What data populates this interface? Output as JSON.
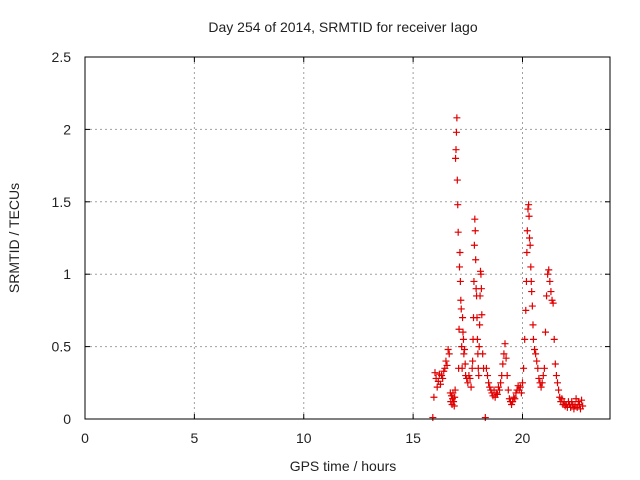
{
  "chart_data": {
    "type": "scatter",
    "title": "Day 254 of 2014, SRMTID for receiver Iago",
    "xlabel": "GPS time / hours",
    "ylabel": "SRMTID / TECUs",
    "xlim": [
      0,
      24
    ],
    "ylim": [
      0,
      2.5
    ],
    "x_ticks": [
      0,
      5,
      10,
      15,
      20
    ],
    "y_ticks": [
      0,
      0.5,
      1,
      1.5,
      2,
      2.5
    ],
    "x_tick_labels": [
      "0",
      "5",
      "10",
      "15",
      "20"
    ],
    "y_tick_labels": [
      "0",
      "0.5",
      "1",
      "1.5",
      "2",
      "2.5"
    ],
    "grid": true,
    "marker": "+",
    "color": "#e00000",
    "series": [
      {
        "name": "SRMTID",
        "points": [
          [
            15.9,
            0.01
          ],
          [
            15.95,
            0.15
          ],
          [
            16.0,
            0.32
          ],
          [
            16.05,
            0.28
          ],
          [
            16.1,
            0.22
          ],
          [
            16.15,
            0.26
          ],
          [
            16.2,
            0.31
          ],
          [
            16.25,
            0.24
          ],
          [
            16.3,
            0.3
          ],
          [
            16.35,
            0.28
          ],
          [
            16.4,
            0.33
          ],
          [
            16.45,
            0.35
          ],
          [
            16.5,
            0.4
          ],
          [
            16.55,
            0.37
          ],
          [
            16.6,
            0.48
          ],
          [
            16.65,
            0.45
          ],
          [
            16.7,
            0.18
          ],
          [
            16.72,
            0.12
          ],
          [
            16.75,
            0.16
          ],
          [
            16.78,
            0.1
          ],
          [
            16.8,
            0.14
          ],
          [
            16.82,
            0.18
          ],
          [
            16.85,
            0.12
          ],
          [
            16.88,
            0.09
          ],
          [
            16.9,
            0.15
          ],
          [
            16.92,
            0.2
          ],
          [
            16.94,
            1.8
          ],
          [
            16.96,
            1.86
          ],
          [
            16.98,
            1.98
          ],
          [
            17.0,
            2.08
          ],
          [
            17.02,
            1.65
          ],
          [
            17.04,
            1.48
          ],
          [
            17.06,
            1.29
          ],
          [
            17.08,
            0.35
          ],
          [
            17.1,
            0.62
          ],
          [
            17.12,
            1.05
          ],
          [
            17.14,
            1.15
          ],
          [
            17.16,
            0.95
          ],
          [
            17.18,
            0.82
          ],
          [
            17.2,
            0.76
          ],
          [
            17.22,
            0.5
          ],
          [
            17.24,
            0.35
          ],
          [
            17.26,
            0.7
          ],
          [
            17.28,
            0.6
          ],
          [
            17.3,
            0.55
          ],
          [
            17.32,
            0.45
          ],
          [
            17.35,
            0.48
          ],
          [
            17.38,
            0.38
          ],
          [
            17.4,
            0.3
          ],
          [
            17.45,
            0.28
          ],
          [
            17.5,
            0.25
          ],
          [
            17.55,
            0.3
          ],
          [
            17.6,
            0.28
          ],
          [
            17.65,
            0.22
          ],
          [
            17.7,
            0.35
          ],
          [
            17.72,
            0.4
          ],
          [
            17.74,
            0.55
          ],
          [
            17.76,
            0.7
          ],
          [
            17.78,
            0.95
          ],
          [
            17.8,
            1.2
          ],
          [
            17.82,
            1.38
          ],
          [
            17.84,
            1.3
          ],
          [
            17.86,
            1.1
          ],
          [
            17.88,
            0.9
          ],
          [
            17.9,
            0.85
          ],
          [
            17.92,
            0.7
          ],
          [
            17.94,
            0.55
          ],
          [
            17.96,
            0.45
          ],
          [
            17.98,
            0.35
          ],
          [
            18.0,
            0.3
          ],
          [
            18.02,
            0.5
          ],
          [
            18.04,
            0.65
          ],
          [
            18.06,
            0.85
          ],
          [
            18.08,
            1.02
          ],
          [
            18.1,
            1.0
          ],
          [
            18.12,
            0.9
          ],
          [
            18.14,
            0.72
          ],
          [
            18.18,
            0.45
          ],
          [
            18.22,
            0.35
          ],
          [
            18.3,
            0.01
          ],
          [
            18.35,
            0.35
          ],
          [
            18.4,
            0.3
          ],
          [
            18.45,
            0.25
          ],
          [
            18.5,
            0.22
          ],
          [
            18.55,
            0.2
          ],
          [
            18.6,
            0.18
          ],
          [
            18.65,
            0.16
          ],
          [
            18.7,
            0.2
          ],
          [
            18.75,
            0.15
          ],
          [
            18.8,
            0.18
          ],
          [
            18.85,
            0.17
          ],
          [
            18.9,
            0.22
          ],
          [
            18.95,
            0.2
          ],
          [
            19.0,
            0.25
          ],
          [
            19.05,
            0.3
          ],
          [
            19.1,
            0.38
          ],
          [
            19.15,
            0.45
          ],
          [
            19.2,
            0.52
          ],
          [
            19.25,
            0.42
          ],
          [
            19.3,
            0.3
          ],
          [
            19.35,
            0.2
          ],
          [
            19.4,
            0.14
          ],
          [
            19.45,
            0.12
          ],
          [
            19.5,
            0.1
          ],
          [
            19.55,
            0.12
          ],
          [
            19.6,
            0.15
          ],
          [
            19.65,
            0.14
          ],
          [
            19.7,
            0.18
          ],
          [
            19.75,
            0.2
          ],
          [
            19.8,
            0.23
          ],
          [
            19.85,
            0.2
          ],
          [
            19.9,
            0.22
          ],
          [
            19.95,
            0.18
          ],
          [
            20.0,
            0.25
          ],
          [
            20.05,
            0.35
          ],
          [
            20.1,
            0.55
          ],
          [
            20.15,
            0.75
          ],
          [
            20.18,
            0.95
          ],
          [
            20.2,
            1.15
          ],
          [
            20.22,
            1.3
          ],
          [
            20.25,
            1.45
          ],
          [
            20.28,
            1.48
          ],
          [
            20.3,
            1.4
          ],
          [
            20.32,
            1.25
          ],
          [
            20.35,
            1.2
          ],
          [
            20.38,
            1.05
          ],
          [
            20.4,
            0.95
          ],
          [
            20.42,
            0.88
          ],
          [
            20.45,
            0.78
          ],
          [
            20.48,
            0.65
          ],
          [
            20.5,
            0.55
          ],
          [
            20.55,
            0.48
          ],
          [
            20.6,
            0.45
          ],
          [
            20.65,
            0.4
          ],
          [
            20.7,
            0.35
          ],
          [
            20.75,
            0.28
          ],
          [
            20.8,
            0.25
          ],
          [
            20.85,
            0.22
          ],
          [
            20.9,
            0.25
          ],
          [
            20.95,
            0.3
          ],
          [
            21.0,
            0.35
          ],
          [
            21.05,
            0.6
          ],
          [
            21.1,
            0.85
          ],
          [
            21.15,
            1.0
          ],
          [
            21.2,
            1.03
          ],
          [
            21.25,
            0.95
          ],
          [
            21.3,
            0.88
          ],
          [
            21.35,
            0.82
          ],
          [
            21.4,
            0.8
          ],
          [
            21.45,
            0.55
          ],
          [
            21.5,
            0.38
          ],
          [
            21.55,
            0.3
          ],
          [
            21.6,
            0.25
          ],
          [
            21.65,
            0.2
          ],
          [
            21.7,
            0.15
          ],
          [
            21.75,
            0.12
          ],
          [
            21.8,
            0.14
          ],
          [
            21.85,
            0.1
          ],
          [
            21.9,
            0.12
          ],
          [
            21.95,
            0.09
          ],
          [
            22.0,
            0.1
          ],
          [
            22.05,
            0.08
          ],
          [
            22.1,
            0.12
          ],
          [
            22.15,
            0.1
          ],
          [
            22.2,
            0.08
          ],
          [
            22.25,
            0.12
          ],
          [
            22.3,
            0.1
          ],
          [
            22.35,
            0.07
          ],
          [
            22.4,
            0.09
          ],
          [
            22.45,
            0.14
          ],
          [
            22.5,
            0.08
          ],
          [
            22.55,
            0.12
          ],
          [
            22.6,
            0.1
          ],
          [
            22.65,
            0.07
          ],
          [
            22.7,
            0.13
          ],
          [
            22.75,
            0.09
          ]
        ]
      }
    ]
  }
}
